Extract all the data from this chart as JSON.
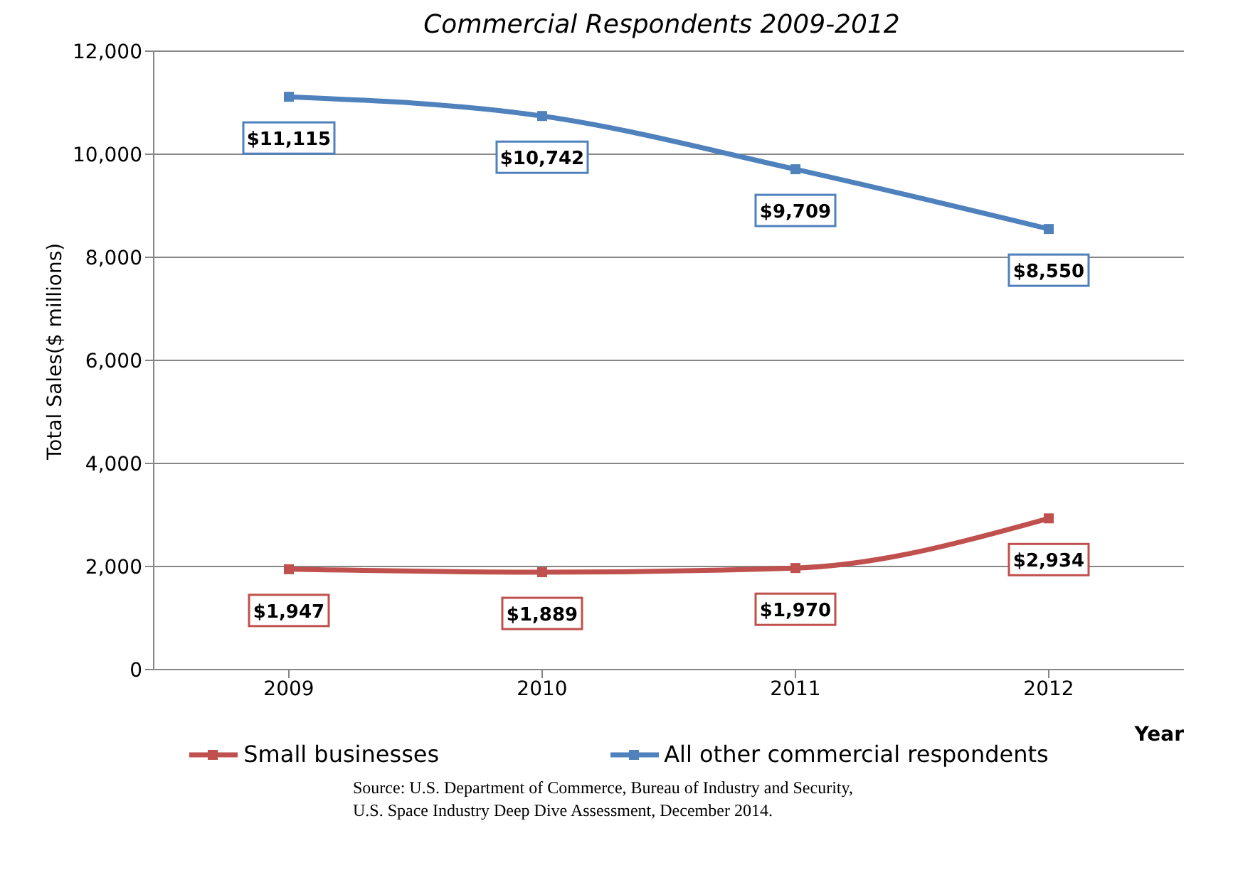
{
  "chart_data": {
    "type": "line",
    "title": "Commercial Respondents 2009-2012",
    "xlabel": "Year",
    "ylabel": "Total Sales($ millions)",
    "categories": [
      "2009",
      "2010",
      "2011",
      "2012"
    ],
    "series": [
      {
        "name": "Small businesses",
        "color": "#c0504d",
        "values": [
          1947,
          1889,
          1970,
          2934
        ],
        "value_labels": [
          "$1,947",
          "$1,889",
          "$1,970",
          "$2,934"
        ]
      },
      {
        "name": "All other commercial respondents",
        "color": "#4f81bd",
        "values": [
          11115,
          10742,
          9709,
          8550
        ],
        "value_labels": [
          "$11,115",
          "$10,742",
          "$9,709",
          "$8,550"
        ]
      }
    ],
    "ylim": [
      0,
      12000
    ],
    "yticks": [
      0,
      {
        "value": 2000,
        "label": "2,000"
      },
      {
        "value": 4000,
        "label": "4,000"
      },
      {
        "value": 6000,
        "label": "6,000"
      },
      {
        "value": 8000,
        "label": "8,000"
      },
      {
        "value": 10000,
        "label": "10,000"
      },
      {
        "value": 12000,
        "label": "12,000"
      }
    ],
    "grid": "y",
    "legend": "bottom",
    "marker": "square",
    "line_style": "solid",
    "annotations": [
      "Source: U.S. Department of Commerce,  Bureau of Industry and Security,",
      "U.S. Space Industry Deep Dive Assessment, December  2014."
    ]
  }
}
